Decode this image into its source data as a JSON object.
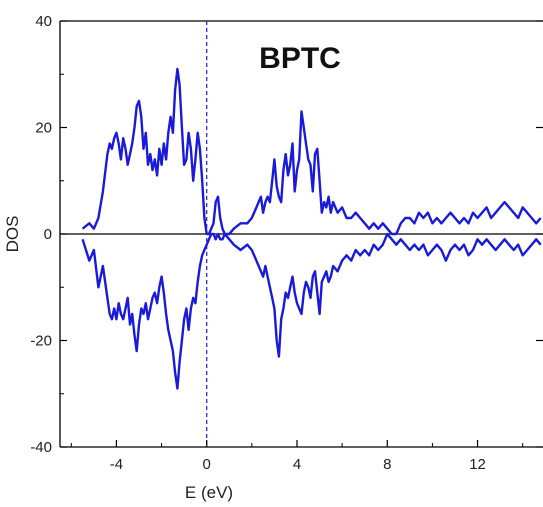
{
  "chart_data": {
    "type": "line",
    "title": "BPTC",
    "xlabel": "E (eV)",
    "ylabel": "DOS",
    "xlim": [
      -6.5,
      14.9
    ],
    "ylim": [
      -40,
      40
    ],
    "x_ticks": [
      -4,
      0,
      4,
      8,
      12
    ],
    "y_ticks": [
      -40,
      -20,
      0,
      20,
      40
    ],
    "fermi_level": 0,
    "grid": false,
    "colors": {
      "series": "#1a1adc",
      "fermi_line": "#1a1adc",
      "axis": "#000000",
      "zero_line": "#000000"
    },
    "series": [
      {
        "x": [
          -5.5,
          -5.2,
          -5.0,
          -4.8,
          -4.6,
          -4.4,
          -4.3,
          -4.2,
          -4.1,
          -4.0,
          -3.9,
          -3.8,
          -3.7,
          -3.6,
          -3.5,
          -3.4,
          -3.3,
          -3.2,
          -3.1,
          -3.0,
          -2.9,
          -2.8,
          -2.7,
          -2.6,
          -2.5,
          -2.4,
          -2.3,
          -2.2,
          -2.1,
          -2.0,
          -1.9,
          -1.8,
          -1.7,
          -1.6,
          -1.5,
          -1.4,
          -1.3,
          -1.2,
          -1.1,
          -1.0,
          -0.9,
          -0.8,
          -0.7,
          -0.6,
          -0.5,
          -0.4,
          -0.3,
          -0.2,
          -0.1,
          0.0,
          0.1,
          0.2,
          0.3,
          0.4,
          0.5,
          0.6,
          0.7,
          0.8,
          1.0,
          1.2,
          1.5,
          1.8,
          2.0,
          2.2,
          2.4,
          2.5,
          2.6,
          2.7,
          2.8,
          2.9,
          3.0,
          3.1,
          3.2,
          3.3,
          3.4,
          3.5,
          3.6,
          3.7,
          3.8,
          3.9,
          4.0,
          4.1,
          4.2,
          4.3,
          4.4,
          4.5,
          4.6,
          4.7,
          4.8,
          4.9,
          5.0,
          5.1,
          5.2,
          5.3,
          5.4,
          5.5,
          5.6,
          5.8,
          6.0,
          6.2,
          6.4,
          6.6,
          6.8,
          7.0,
          7.2,
          7.4,
          7.6,
          7.8,
          8.0,
          8.2,
          8.4,
          8.6,
          8.8,
          9.0,
          9.2,
          9.4,
          9.6,
          9.8,
          10.0,
          10.2,
          10.4,
          10.6,
          10.8,
          11.0,
          11.2,
          11.4,
          11.6,
          11.8,
          12.0,
          12.2,
          12.4,
          12.6,
          12.8,
          13.0,
          13.2,
          13.4,
          13.6,
          13.8,
          14.0,
          14.2,
          14.4,
          14.6,
          14.8
        ],
        "y": [
          1,
          2,
          1,
          3,
          8,
          15,
          17,
          16,
          18,
          19,
          17,
          14,
          18,
          16,
          13,
          15,
          17,
          20,
          24,
          25,
          22,
          16,
          19,
          13,
          15,
          12,
          14,
          11,
          16,
          13,
          17,
          14,
          19,
          22,
          19,
          27,
          31,
          28,
          20,
          13,
          14,
          19,
          16,
          10,
          14,
          19,
          16,
          10,
          3,
          0,
          0,
          1,
          2,
          6,
          7,
          3,
          1,
          0,
          0,
          1,
          2,
          2,
          3,
          5,
          7,
          4,
          6,
          7,
          6,
          10,
          14,
          9,
          7,
          6,
          12,
          15,
          11,
          13,
          17,
          8,
          12,
          14,
          23,
          20,
          17,
          14,
          13,
          8,
          15,
          16,
          10,
          4,
          6,
          5,
          7,
          4,
          6,
          4,
          5,
          3,
          3,
          4,
          3,
          2,
          1,
          2,
          1,
          2,
          1,
          0,
          0,
          2,
          3,
          3,
          2,
          4,
          3,
          4,
          2,
          3,
          2,
          3,
          4,
          3,
          2,
          3,
          2,
          4,
          3,
          4,
          5,
          3,
          4,
          5,
          6,
          5,
          4,
          3,
          5,
          4,
          3,
          2,
          3
        ]
      },
      {
        "x": [
          -5.5,
          -5.2,
          -5.0,
          -4.8,
          -4.6,
          -4.4,
          -4.3,
          -4.2,
          -4.1,
          -4.0,
          -3.9,
          -3.8,
          -3.7,
          -3.6,
          -3.5,
          -3.4,
          -3.3,
          -3.2,
          -3.1,
          -3.0,
          -2.9,
          -2.8,
          -2.7,
          -2.6,
          -2.5,
          -2.4,
          -2.3,
          -2.2,
          -2.1,
          -2.0,
          -1.9,
          -1.8,
          -1.7,
          -1.6,
          -1.5,
          -1.4,
          -1.3,
          -1.2,
          -1.1,
          -1.0,
          -0.9,
          -0.8,
          -0.7,
          -0.6,
          -0.5,
          -0.4,
          -0.3,
          -0.2,
          -0.1,
          0.0,
          0.1,
          0.2,
          0.3,
          0.4,
          0.5,
          0.6,
          0.7,
          0.8,
          1.0,
          1.2,
          1.5,
          1.8,
          2.0,
          2.2,
          2.4,
          2.5,
          2.6,
          2.7,
          2.8,
          2.9,
          3.0,
          3.1,
          3.2,
          3.3,
          3.4,
          3.5,
          3.6,
          3.7,
          3.8,
          3.9,
          4.0,
          4.1,
          4.2,
          4.3,
          4.4,
          4.5,
          4.6,
          4.7,
          4.8,
          4.9,
          5.0,
          5.1,
          5.2,
          5.3,
          5.4,
          5.5,
          5.6,
          5.8,
          6.0,
          6.2,
          6.4,
          6.6,
          6.8,
          7.0,
          7.2,
          7.4,
          7.6,
          7.8,
          8.0,
          8.2,
          8.4,
          8.6,
          8.8,
          9.0,
          9.2,
          9.4,
          9.6,
          9.8,
          10.0,
          10.2,
          10.4,
          10.6,
          10.8,
          11.0,
          11.2,
          11.4,
          11.6,
          11.8,
          12.0,
          12.2,
          12.4,
          12.6,
          12.8,
          13.0,
          13.2,
          13.4,
          13.6,
          13.8,
          14.0,
          14.2,
          14.4,
          14.6,
          14.8
        ],
        "y": [
          -1,
          -5,
          -3,
          -10,
          -6,
          -12,
          -15,
          -16,
          -14,
          -16,
          -13,
          -15,
          -16,
          -14,
          -12,
          -17,
          -15,
          -19,
          -22,
          -17,
          -14,
          -15,
          -13,
          -16,
          -14,
          -12,
          -11,
          -13,
          -10,
          -8,
          -11,
          -15,
          -18,
          -20,
          -22,
          -26,
          -29,
          -24,
          -20,
          -16,
          -14,
          -18,
          -14,
          -12,
          -13,
          -9,
          -6,
          -4,
          -3,
          -2,
          -1,
          0,
          0,
          -1,
          0,
          -1,
          -1,
          0,
          -1,
          -2,
          -3,
          -2,
          -3,
          -5,
          -7,
          -8,
          -6,
          -8,
          -10,
          -12,
          -14,
          -20,
          -23,
          -16,
          -14,
          -11,
          -12,
          -10,
          -8,
          -11,
          -13,
          -14,
          -15,
          -11,
          -9,
          -10,
          -12,
          -8,
          -7,
          -11,
          -15,
          -9,
          -8,
          -7,
          -9,
          -8,
          -6,
          -7,
          -5,
          -4,
          -5,
          -3,
          -4,
          -3,
          -4,
          -2,
          -3,
          -2,
          0,
          -1,
          -2,
          -1,
          -2,
          -3,
          -2,
          -3,
          -2,
          -4,
          -3,
          -2,
          -3,
          -5,
          -3,
          -2,
          -3,
          -2,
          -4,
          -3,
          -1,
          -2,
          -1,
          -2,
          -3,
          -2,
          -1,
          -2,
          -3,
          -2,
          -4,
          -3,
          -2,
          -1,
          -2
        ]
      }
    ]
  }
}
